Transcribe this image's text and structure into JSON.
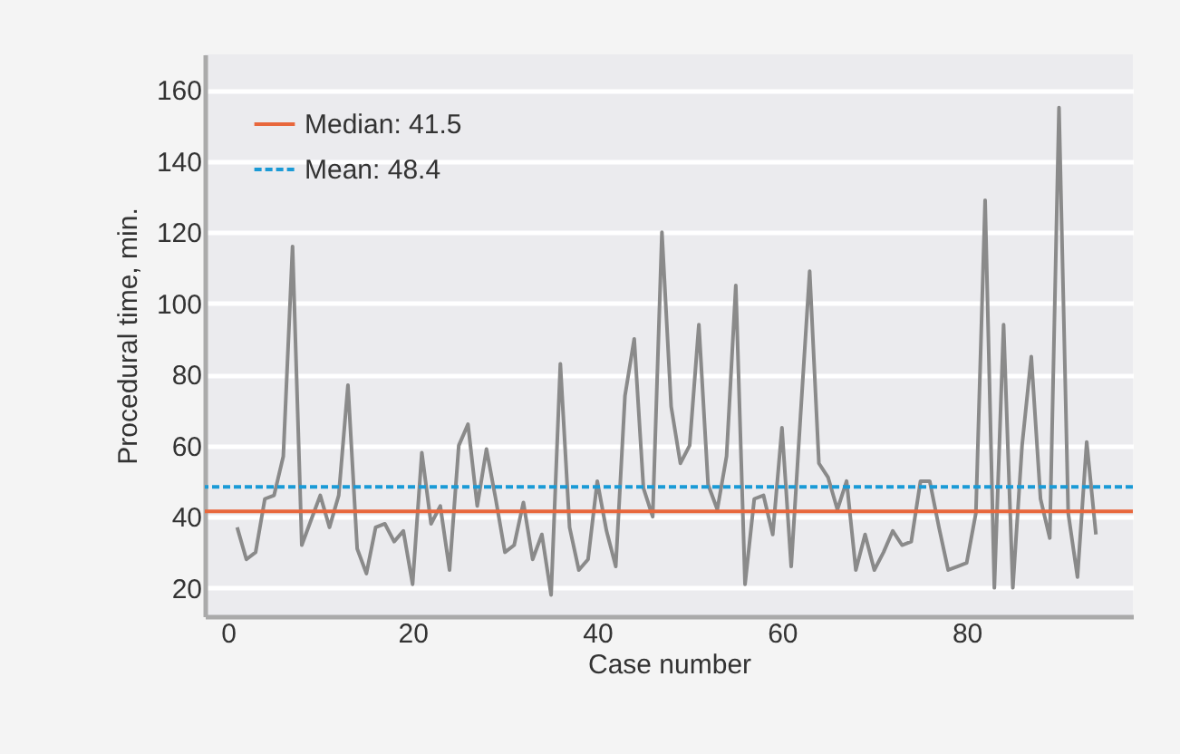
{
  "chart_data": {
    "type": "line",
    "xlabel": "Case number",
    "ylabel": "Procedural time, min.",
    "x": [
      1,
      2,
      3,
      4,
      5,
      6,
      7,
      8,
      9,
      10,
      11,
      12,
      13,
      14,
      15,
      16,
      17,
      18,
      19,
      20,
      21,
      22,
      23,
      24,
      25,
      26,
      27,
      28,
      29,
      30,
      31,
      32,
      33,
      34,
      35,
      36,
      37,
      38,
      39,
      40,
      41,
      42,
      43,
      44,
      45,
      46,
      47,
      48,
      49,
      50,
      51,
      52,
      53,
      54,
      55,
      56,
      57,
      58,
      59,
      60,
      61,
      62,
      63,
      64,
      65,
      66,
      67,
      68,
      69,
      70,
      71,
      72,
      73,
      74,
      75,
      76,
      77,
      78,
      79,
      80,
      81,
      82,
      83,
      84,
      85,
      86,
      87,
      88,
      89,
      90,
      91,
      92,
      93,
      94
    ],
    "series": [
      {
        "color": "#8a8a8a",
        "values": [
          37,
          28,
          30,
          45,
          46,
          57,
          116,
          32,
          39,
          46,
          37,
          46,
          77,
          31,
          24,
          37,
          38,
          33,
          36,
          21,
          58,
          38,
          43,
          25,
          60,
          66,
          43,
          59,
          45,
          30,
          32,
          44,
          28,
          35,
          18,
          83,
          37,
          25,
          28,
          50,
          36,
          26,
          74,
          90,
          48,
          40,
          120,
          71,
          55,
          60,
          94,
          49,
          42,
          57,
          105,
          21,
          45,
          46,
          35,
          65,
          26,
          68,
          109,
          55,
          51,
          42,
          50,
          25,
          35,
          25,
          30,
          36,
          32,
          33,
          50,
          50,
          37,
          25,
          26,
          27,
          41,
          129,
          20,
          94,
          20,
          60,
          85,
          45,
          34,
          155,
          41,
          23,
          61,
          35
        ]
      }
    ],
    "xlim": [
      -2.5,
      98
    ],
    "xticks": [
      0,
      20,
      40,
      60,
      80
    ],
    "ylim": [
      12,
      170
    ],
    "yticks": [
      20,
      40,
      60,
      80,
      100,
      120,
      140,
      160
    ],
    "ref_lines": [
      {
        "axis": "y",
        "value": 41.5,
        "label": "Median: 41.5",
        "color": "#e8673c",
        "line_style": "solid"
      },
      {
        "axis": "y",
        "value": 48.4,
        "label": "Mean: 48.4",
        "color": "#1a9ad6",
        "line_style": "dashed"
      }
    ],
    "grid": "y",
    "legend": "top left",
    "marker": "none",
    "line_style": "solid"
  }
}
